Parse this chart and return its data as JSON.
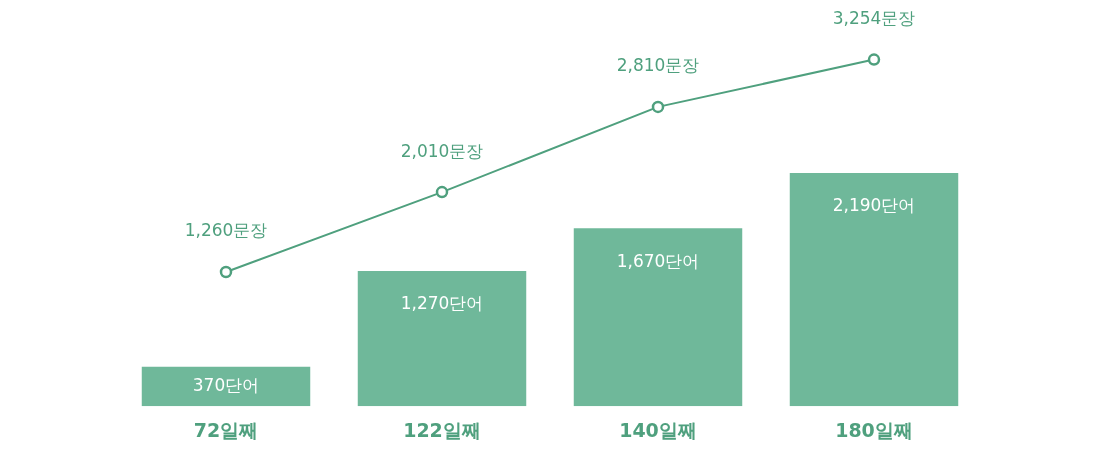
{
  "chart_data": {
    "type": "bar",
    "categories": [
      "72일째",
      "122일째",
      "140일째",
      "180일째"
    ],
    "series": [
      {
        "color": "#6fb89a",
        "values": [
          370,
          1270,
          1670,
          2190
        ],
        "value_labels": [
          "370단어",
          "1,270단어",
          "1,670단어",
          "2,190단어"
        ]
      },
      {
        "type": "line",
        "color": "#4fa07e",
        "values": [
          1260,
          2010,
          2810,
          3254
        ],
        "value_labels": [
          "1,260문장",
          "2,010문장",
          "2,810문장",
          "3,254문장"
        ]
      }
    ],
    "marker": "circle",
    "line_style": "solid",
    "grid": false,
    "legend": false,
    "tick_labels": "x"
  }
}
